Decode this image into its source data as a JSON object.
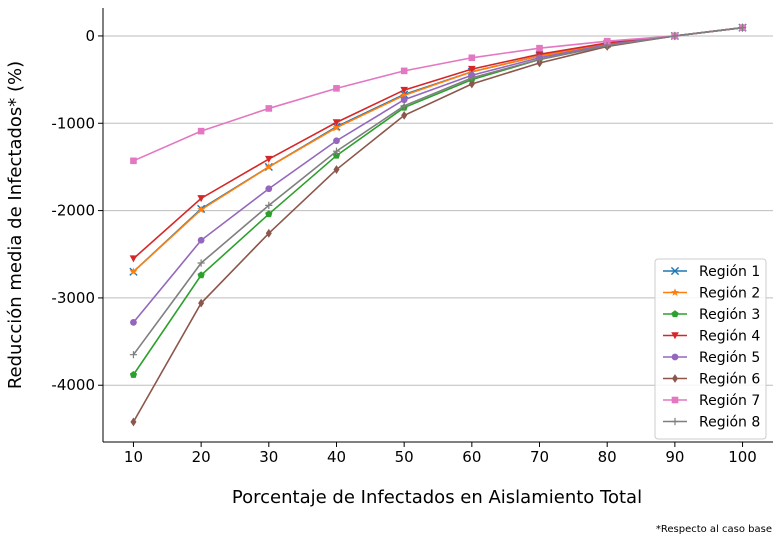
{
  "chart_data": {
    "type": "line",
    "xlabel": "Porcentaje de Infectados en Aislamiento Total",
    "ylabel": "Reducción media de Infectados* (%)",
    "note": "*Respecto al caso base",
    "x": [
      10,
      20,
      30,
      40,
      50,
      60,
      70,
      80,
      90,
      100
    ],
    "xlim": [
      5.5,
      104.5
    ],
    "ylim": [
      -4650,
      320
    ],
    "xticks": [
      10,
      20,
      30,
      40,
      50,
      60,
      70,
      80,
      90,
      100
    ],
    "yticks": [
      0,
      -1000,
      -2000,
      -3000,
      -4000
    ],
    "grid": "horizontal",
    "legend_position": "bottom-right",
    "series": [
      {
        "name": "Región 1",
        "color": "#1f77b4",
        "marker": "x",
        "values": [
          -2700,
          -1980,
          -1500,
          -1040,
          -670,
          -410,
          -230,
          -90,
          0,
          95
        ]
      },
      {
        "name": "Región 2",
        "color": "#ff7f0e",
        "marker": "star",
        "values": [
          -2700,
          -1990,
          -1500,
          -1050,
          -680,
          -410,
          -230,
          -90,
          0,
          95
        ]
      },
      {
        "name": "Región 3",
        "color": "#2ca02c",
        "marker": "pentagon",
        "values": [
          -3880,
          -2740,
          -2040,
          -1370,
          -820,
          -500,
          -270,
          -110,
          0,
          95
        ]
      },
      {
        "name": "Región 4",
        "color": "#d62728",
        "marker": "triangle-down",
        "values": [
          -2550,
          -1860,
          -1410,
          -990,
          -620,
          -380,
          -210,
          -80,
          0,
          95
        ]
      },
      {
        "name": "Región 5",
        "color": "#9467bd",
        "marker": "circle",
        "values": [
          -3280,
          -2340,
          -1750,
          -1200,
          -730,
          -450,
          -250,
          -100,
          0,
          95
        ]
      },
      {
        "name": "Región 6",
        "color": "#8c564b",
        "marker": "diamond",
        "values": [
          -4420,
          -3060,
          -2260,
          -1530,
          -910,
          -550,
          -310,
          -120,
          0,
          95
        ]
      },
      {
        "name": "Región 7",
        "color": "#e377c2",
        "marker": "square",
        "values": [
          -1430,
          -1090,
          -830,
          -600,
          -400,
          -250,
          -140,
          -60,
          0,
          95
        ]
      },
      {
        "name": "Región 8",
        "color": "#7f7f7f",
        "marker": "plus",
        "values": [
          -3650,
          -2600,
          -1940,
          -1320,
          -800,
          -480,
          -270,
          -110,
          0,
          95
        ]
      }
    ]
  }
}
